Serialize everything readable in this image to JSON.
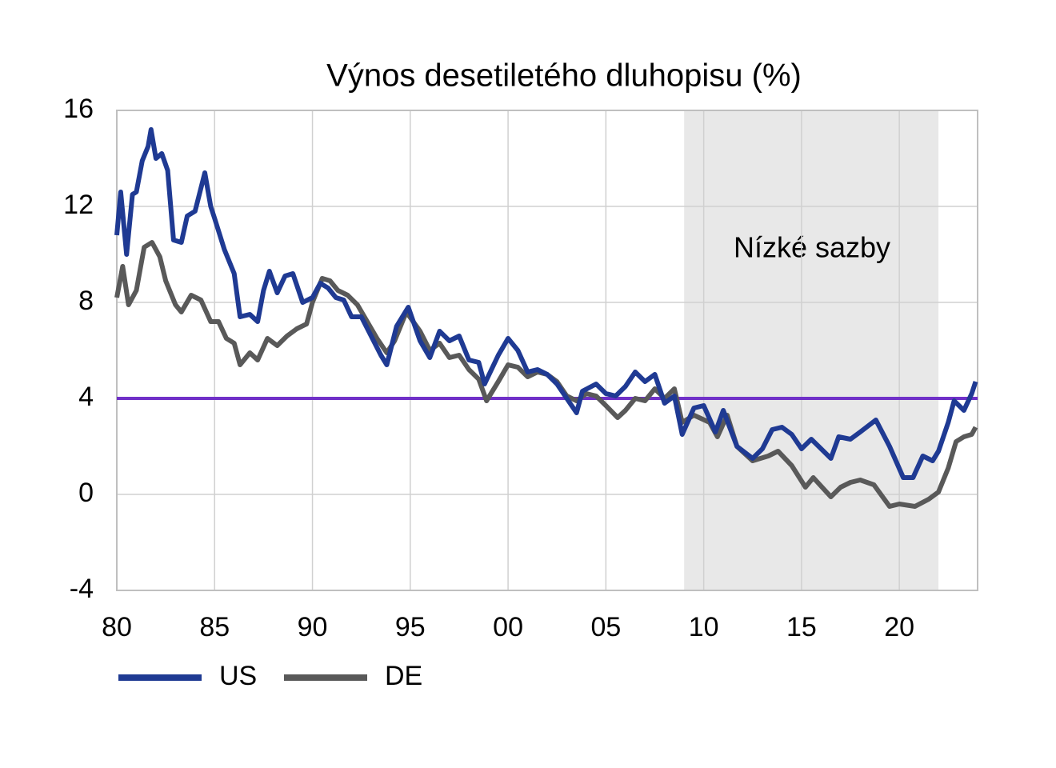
{
  "chart_data": {
    "type": "line",
    "title": "Výnos desetiletého dluhopisu (%)",
    "xlim": [
      1980,
      2024
    ],
    "xticks": [
      {
        "value": 1980,
        "label": "80"
      },
      {
        "value": 1985,
        "label": "85"
      },
      {
        "value": 1990,
        "label": "90"
      },
      {
        "value": 1995,
        "label": "95"
      },
      {
        "value": 2000,
        "label": "00"
      },
      {
        "value": 2005,
        "label": "05"
      },
      {
        "value": 2010,
        "label": "10"
      },
      {
        "value": 2015,
        "label": "15"
      },
      {
        "value": 2020,
        "label": "20"
      }
    ],
    "ylim": [
      -4,
      16
    ],
    "yticks": [
      16,
      12,
      8,
      4,
      0,
      -4
    ],
    "grid": true,
    "legend": "bottom",
    "shaded": {
      "x": [
        2009,
        2022
      ],
      "label": "Nízké sazby",
      "color": "#e8e8e8"
    },
    "hline": {
      "value": 4,
      "color": "#7030c8"
    },
    "series": [
      {
        "name": "US",
        "color": "#1f3a93",
        "x": [
          1980.0,
          1980.2,
          1980.5,
          1980.8,
          1981.0,
          1981.3,
          1981.6,
          1981.75,
          1982.0,
          1982.3,
          1982.6,
          1982.9,
          1983.3,
          1983.6,
          1984.0,
          1984.5,
          1984.8,
          1985.0,
          1985.5,
          1986.0,
          1986.3,
          1986.8,
          1987.2,
          1987.5,
          1987.8,
          1988.2,
          1988.6,
          1989.0,
          1989.5,
          1990.0,
          1990.4,
          1990.8,
          1991.2,
          1991.6,
          1992.0,
          1992.5,
          1993.0,
          1993.5,
          1993.8,
          1994.3,
          1994.9,
          1995.5,
          1996.0,
          1996.5,
          1997.0,
          1997.5,
          1998.0,
          1998.5,
          1998.8,
          1999.5,
          2000.0,
          2000.5,
          2001.0,
          2001.5,
          2002.0,
          2002.5,
          2003.0,
          2003.5,
          2003.8,
          2004.5,
          2005.0,
          2005.5,
          2006.0,
          2006.5,
          2007.0,
          2007.5,
          2008.0,
          2008.5,
          2008.9,
          2009.5,
          2010.0,
          2010.6,
          2011.0,
          2011.7,
          2012.5,
          2013.0,
          2013.5,
          2014.0,
          2014.5,
          2015.0,
          2015.5,
          2016.5,
          2016.9,
          2017.5,
          2018.0,
          2018.8,
          2019.5,
          2020.2,
          2020.7,
          2021.2,
          2021.7,
          2022.0,
          2022.5,
          2022.8,
          2023.3,
          2023.7,
          2023.9
        ],
        "values": [
          10.8,
          12.6,
          10,
          12.5,
          12.6,
          13.9,
          14.5,
          15.2,
          14,
          14.2,
          13.5,
          10.6,
          10.5,
          11.6,
          11.8,
          13.4,
          12,
          11.5,
          10.2,
          9.2,
          7.4,
          7.5,
          7.2,
          8.5,
          9.3,
          8.4,
          9.1,
          9.2,
          8.0,
          8.2,
          8.8,
          8.6,
          8.2,
          8.1,
          7.4,
          7.4,
          6.6,
          5.8,
          5.4,
          7.0,
          7.8,
          6.4,
          5.7,
          6.8,
          6.4,
          6.6,
          5.6,
          5.5,
          4.6,
          5.8,
          6.5,
          6.0,
          5.1,
          5.2,
          5.0,
          4.6,
          4.0,
          3.4,
          4.3,
          4.6,
          4.2,
          4.1,
          4.5,
          5.1,
          4.7,
          5.0,
          3.8,
          4.1,
          2.5,
          3.6,
          3.7,
          2.6,
          3.5,
          2.0,
          1.5,
          1.9,
          2.7,
          2.8,
          2.5,
          1.9,
          2.3,
          1.5,
          2.4,
          2.3,
          2.6,
          3.1,
          2.0,
          0.7,
          0.7,
          1.6,
          1.4,
          1.8,
          3.0,
          3.9,
          3.5,
          4.2,
          4.7
        ]
      },
      {
        "name": "DE",
        "color": "#595959",
        "x": [
          1980.0,
          1980.3,
          1980.6,
          1981.0,
          1981.4,
          1981.8,
          1982.2,
          1982.5,
          1983.0,
          1983.3,
          1983.8,
          1984.3,
          1984.8,
          1985.2,
          1985.6,
          1986.0,
          1986.3,
          1986.8,
          1987.2,
          1987.7,
          1988.2,
          1988.7,
          1989.2,
          1989.7,
          1990.0,
          1990.5,
          1990.9,
          1991.3,
          1991.8,
          1992.3,
          1992.8,
          1993.3,
          1993.8,
          1994.2,
          1994.8,
          1995.5,
          1996.0,
          1996.5,
          1997.0,
          1997.5,
          1998.0,
          1998.5,
          1998.9,
          1999.5,
          2000.0,
          2000.5,
          2001.0,
          2001.5,
          2002.0,
          2002.5,
          2003.0,
          2003.5,
          2004.0,
          2004.5,
          2005.0,
          2005.6,
          2006.0,
          2006.5,
          2007.0,
          2007.5,
          2008.0,
          2008.5,
          2008.9,
          2009.5,
          2010.3,
          2010.7,
          2011.2,
          2011.7,
          2012.5,
          2013.3,
          2013.8,
          2014.5,
          2015.2,
          2015.6,
          2016.5,
          2017.0,
          2017.5,
          2018.0,
          2018.7,
          2019.5,
          2020.0,
          2020.8,
          2021.5,
          2022.0,
          2022.5,
          2022.9,
          2023.3,
          2023.7,
          2023.9
        ],
        "values": [
          8.2,
          9.5,
          7.9,
          8.5,
          10.3,
          10.5,
          9.9,
          8.9,
          7.9,
          7.6,
          8.3,
          8.1,
          7.2,
          7.2,
          6.5,
          6.3,
          5.4,
          5.9,
          5.6,
          6.5,
          6.2,
          6.6,
          6.9,
          7.1,
          8.0,
          9.0,
          8.9,
          8.5,
          8.3,
          7.9,
          7.2,
          6.5,
          5.9,
          6.4,
          7.6,
          6.8,
          6.0,
          6.3,
          5.7,
          5.8,
          5.2,
          4.8,
          3.9,
          4.7,
          5.4,
          5.3,
          4.9,
          5.1,
          5.0,
          4.7,
          4.1,
          3.9,
          4.2,
          4.1,
          3.7,
          3.2,
          3.5,
          4.0,
          3.9,
          4.4,
          4.0,
          4.4,
          3.0,
          3.3,
          3.0,
          2.4,
          3.3,
          2.0,
          1.4,
          1.6,
          1.8,
          1.2,
          0.3,
          0.7,
          -0.1,
          0.3,
          0.5,
          0.6,
          0.4,
          -0.5,
          -0.4,
          -0.5,
          -0.2,
          0.1,
          1.1,
          2.2,
          2.4,
          2.5,
          2.8
        ]
      }
    ]
  }
}
